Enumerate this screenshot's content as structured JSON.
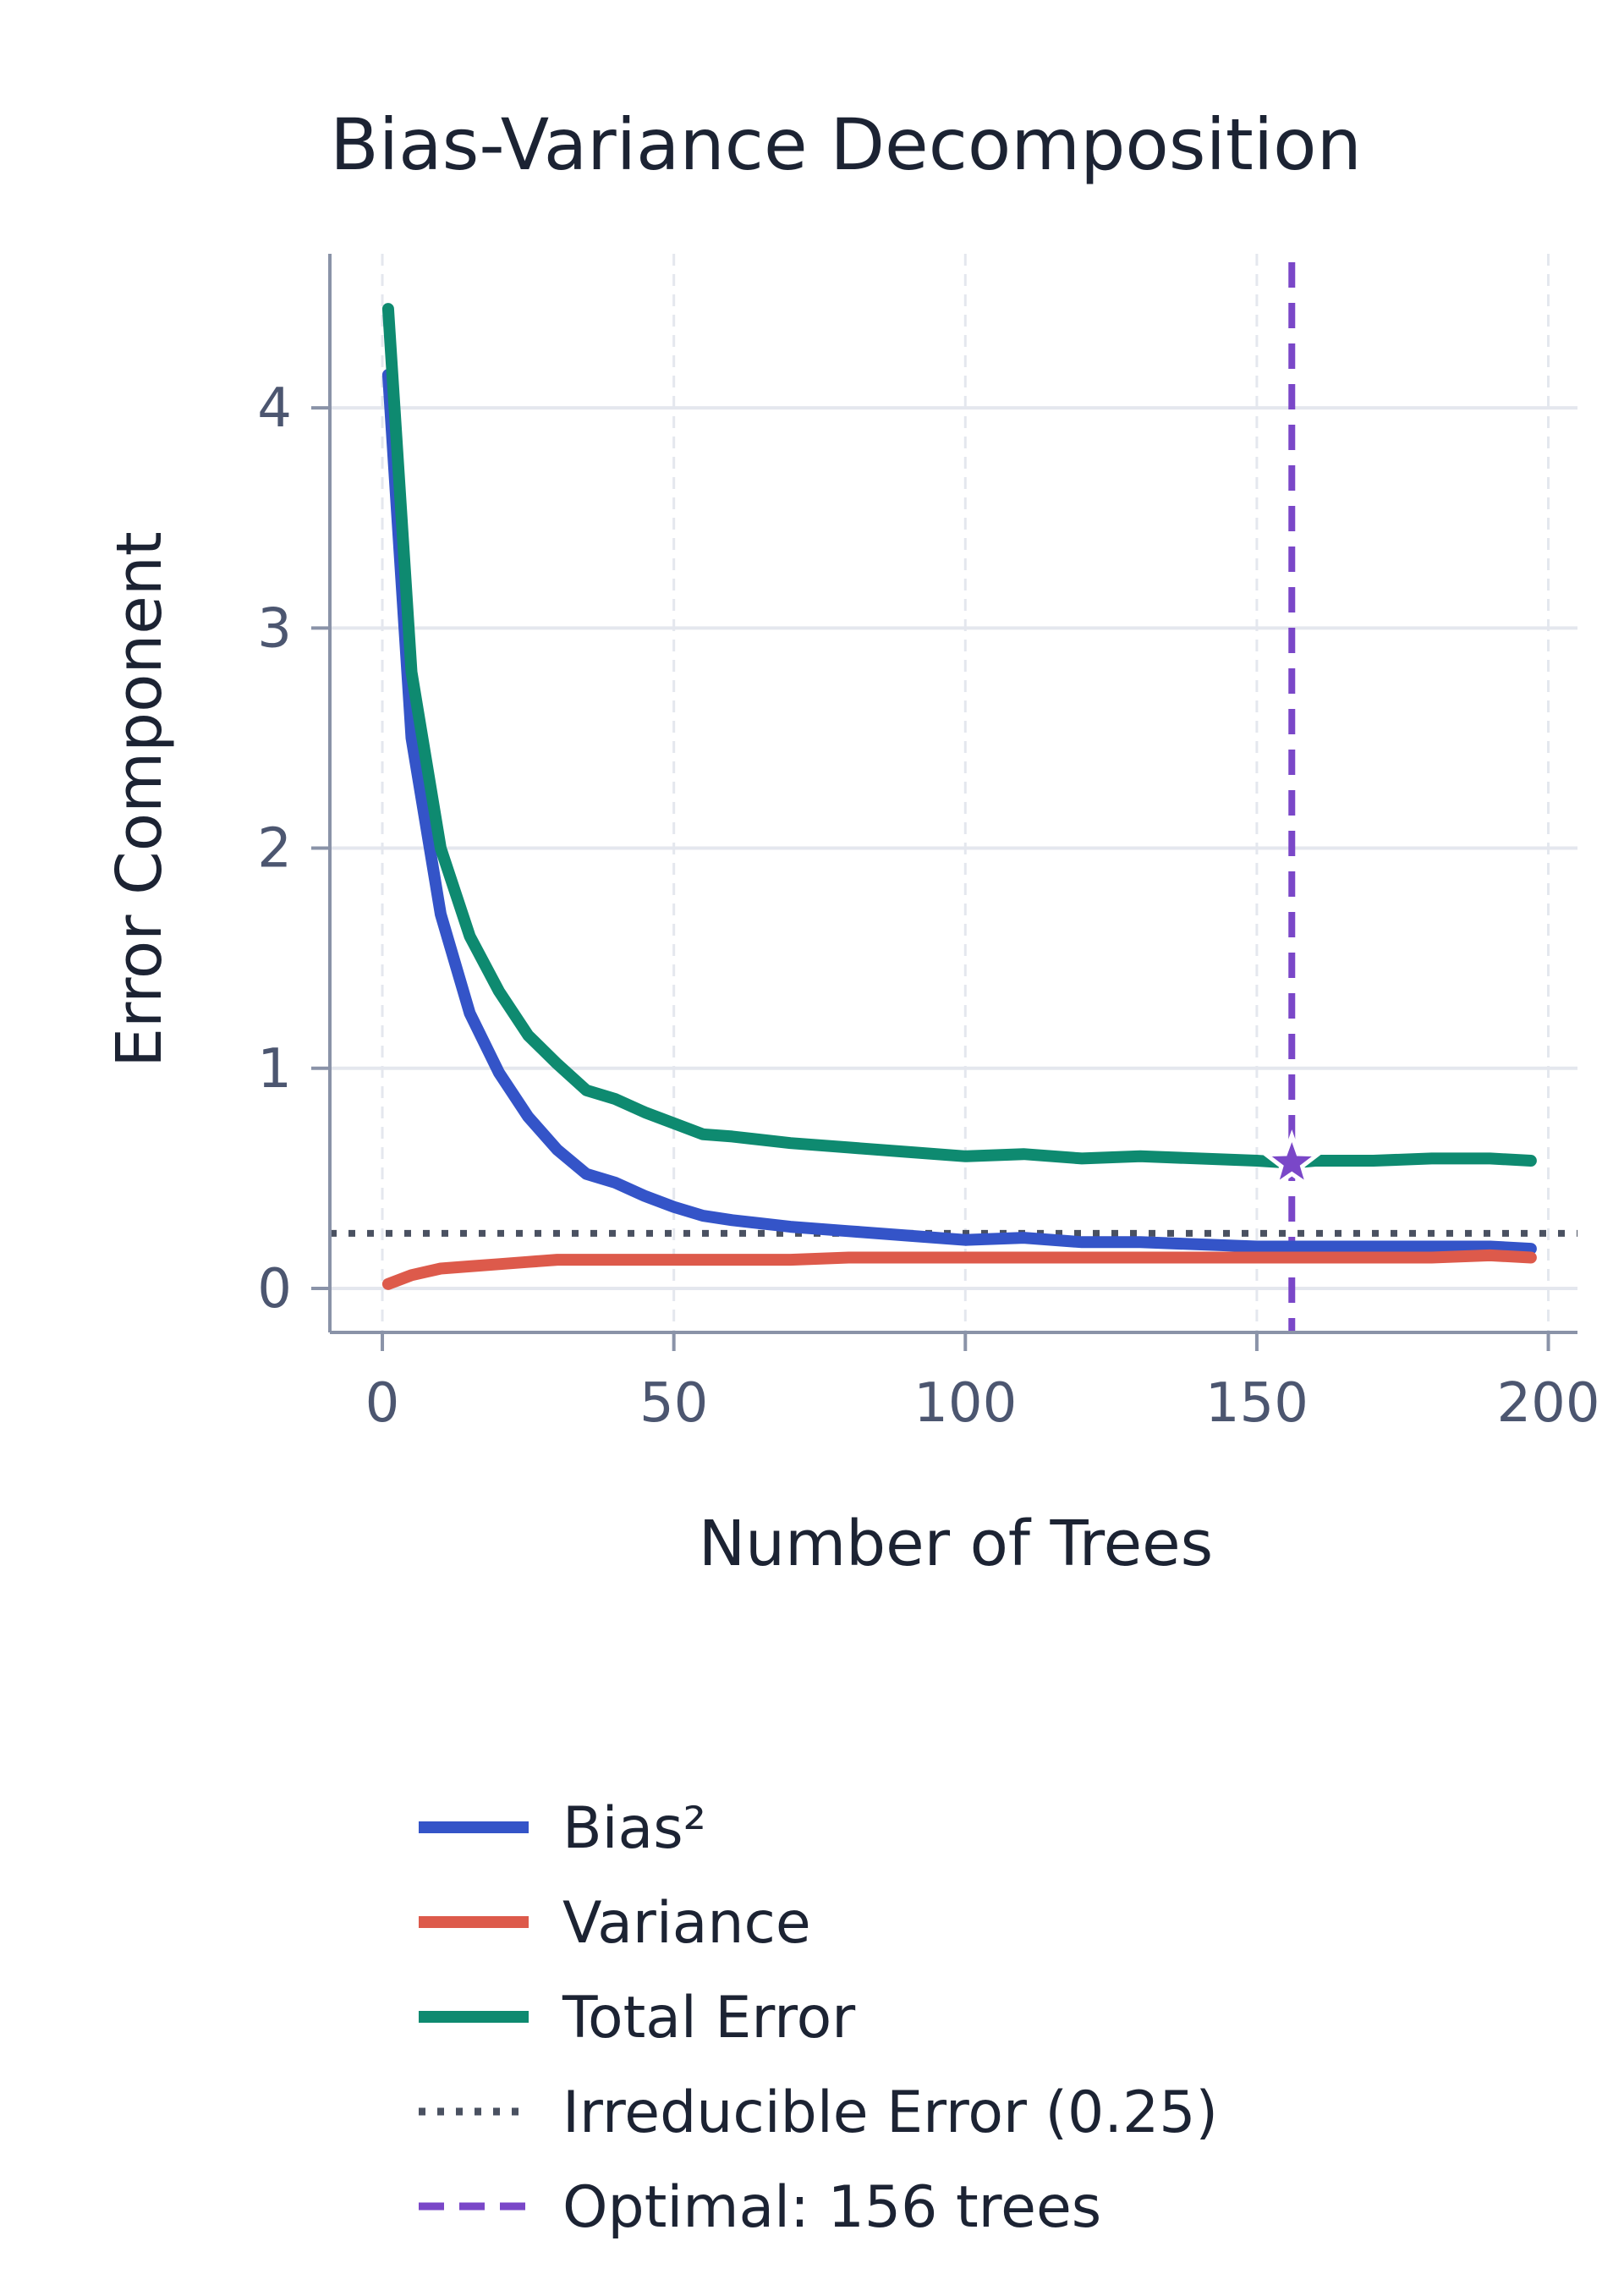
{
  "chart_data": {
    "type": "line",
    "title": "Bias-Variance Decomposition",
    "xlabel": "Number of Trees",
    "ylabel": "Error Component",
    "xlim": [
      -9,
      205
    ],
    "ylim": [
      -0.2,
      4.7
    ],
    "xticks": [
      0,
      50,
      100,
      150,
      200
    ],
    "yticks": [
      0,
      1,
      2,
      3,
      4
    ],
    "grid": true,
    "legend_position": "bottom",
    "colors": {
      "bias": "#3454c8",
      "variance": "#dd5a4b",
      "total": "#0e8a70",
      "irreducible": "#4a5161",
      "optimal": "#7a47c8",
      "grid": "#e4e7ee",
      "axis": "#8a93a8"
    },
    "series": [
      {
        "name": "Bias²",
        "key": "bias",
        "x": [
          1,
          5,
          10,
          15,
          20,
          25,
          30,
          35,
          40,
          45,
          50,
          55,
          60,
          70,
          80,
          90,
          100,
          110,
          120,
          130,
          140,
          150,
          160,
          170,
          180,
          190,
          197
        ],
        "y": [
          4.15,
          2.5,
          1.7,
          1.25,
          0.98,
          0.78,
          0.63,
          0.52,
          0.48,
          0.42,
          0.37,
          0.33,
          0.31,
          0.28,
          0.26,
          0.24,
          0.22,
          0.23,
          0.21,
          0.21,
          0.2,
          0.19,
          0.19,
          0.19,
          0.19,
          0.19,
          0.18
        ]
      },
      {
        "name": "Variance",
        "key": "variance",
        "x": [
          1,
          5,
          10,
          15,
          20,
          25,
          30,
          35,
          40,
          50,
          60,
          70,
          80,
          90,
          100,
          110,
          120,
          130,
          140,
          150,
          160,
          170,
          180,
          190,
          197
        ],
        "y": [
          0.02,
          0.06,
          0.09,
          0.1,
          0.11,
          0.12,
          0.13,
          0.13,
          0.13,
          0.13,
          0.13,
          0.13,
          0.14,
          0.14,
          0.14,
          0.14,
          0.14,
          0.14,
          0.14,
          0.14,
          0.14,
          0.14,
          0.14,
          0.15,
          0.14
        ]
      },
      {
        "name": "Total Error",
        "key": "total",
        "x": [
          1,
          5,
          10,
          15,
          20,
          25,
          30,
          35,
          40,
          45,
          50,
          55,
          60,
          70,
          80,
          90,
          100,
          110,
          120,
          130,
          140,
          150,
          156,
          160,
          170,
          180,
          190,
          197
        ],
        "y": [
          4.45,
          2.8,
          2.0,
          1.6,
          1.35,
          1.15,
          1.02,
          0.9,
          0.86,
          0.8,
          0.75,
          0.7,
          0.69,
          0.66,
          0.64,
          0.62,
          0.6,
          0.61,
          0.59,
          0.6,
          0.59,
          0.58,
          0.57,
          0.58,
          0.58,
          0.59,
          0.59,
          0.58
        ]
      }
    ],
    "reference_lines": [
      {
        "name": "Irreducible Error (0.25)",
        "key": "irreducible",
        "orientation": "horizontal",
        "value": 0.25,
        "style": "dotted"
      },
      {
        "name": "Optimal: 156 trees",
        "key": "optimal",
        "orientation": "vertical",
        "value": 156,
        "style": "dashed"
      }
    ],
    "markers": [
      {
        "x": 156,
        "y": 0.57,
        "shape": "star",
        "color_key": "optimal"
      }
    ]
  }
}
